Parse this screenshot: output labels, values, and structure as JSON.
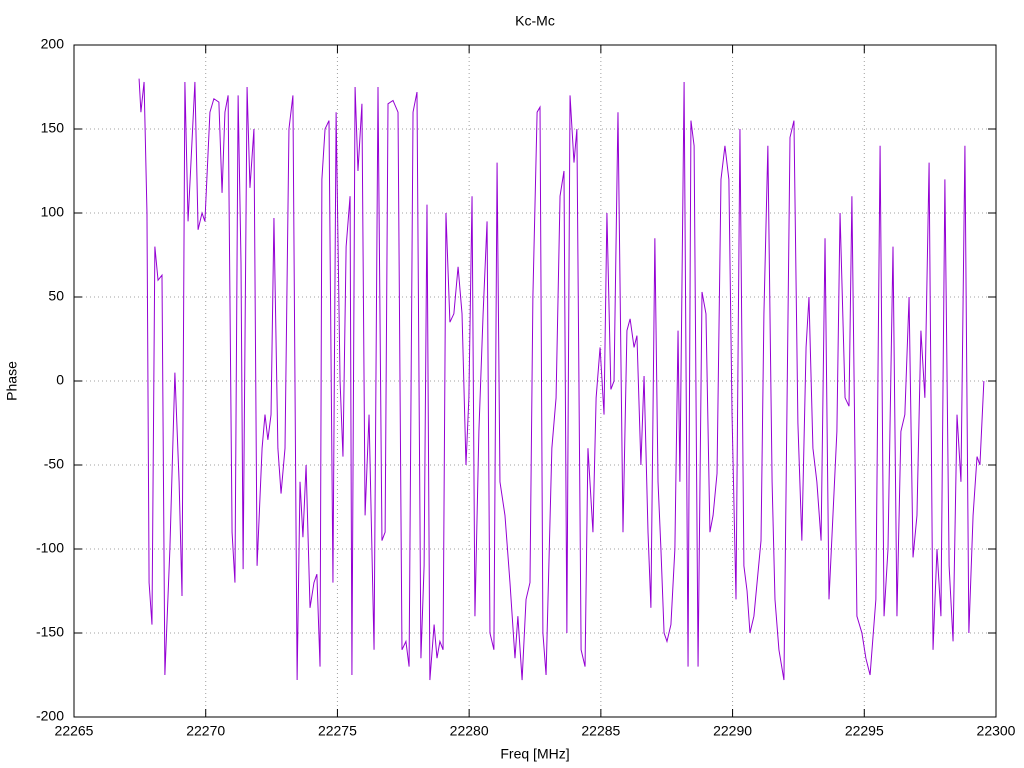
{
  "chart_data": {
    "type": "line",
    "title": "Kc-Mc",
    "x_label": "Freq [MHz]",
    "y_label": "Phase",
    "color": "#9400d3",
    "grid": true,
    "xlim": [
      22265,
      22300
    ],
    "xticks": [
      22265,
      22270,
      22275,
      22280,
      22285,
      22290,
      22295,
      22300
    ],
    "ylim": [
      -200,
      200
    ],
    "yticks": [
      -200,
      -150,
      -100,
      -50,
      0,
      50,
      100,
      150,
      200
    ],
    "x": [
      22267.47,
      22267.54,
      22267.66,
      22267.77,
      22267.85,
      22267.96,
      22268.07,
      22268.19,
      22268.34,
      22268.45,
      22268.64,
      22268.83,
      22268.99,
      22269.1,
      22269.21,
      22269.33,
      22269.44,
      22269.59,
      22269.71,
      22269.86,
      22269.97,
      22270.16,
      22270.31,
      22270.5,
      22270.62,
      22270.73,
      22270.85,
      22271.0,
      22271.11,
      22271.23,
      22271.34,
      22271.42,
      22271.57,
      22271.68,
      22271.83,
      22271.95,
      22272.14,
      22272.25,
      22272.36,
      22272.48,
      22272.59,
      22272.74,
      22272.86,
      22273.01,
      22273.16,
      22273.31,
      22273.47,
      22273.58,
      22273.69,
      22273.81,
      22273.96,
      22274.11,
      22274.22,
      22274.34,
      22274.41,
      22274.53,
      22274.68,
      22274.83,
      22274.95,
      22275.1,
      22275.21,
      22275.33,
      22275.48,
      22275.55,
      22275.67,
      22275.78,
      22275.93,
      22276.05,
      22276.2,
      22276.39,
      22276.54,
      22276.69,
      22276.81,
      22276.92,
      22277.11,
      22277.3,
      22277.45,
      22277.6,
      22277.72,
      22277.87,
      22278.02,
      22278.17,
      22278.29,
      22278.4,
      22278.51,
      22278.67,
      22278.78,
      22278.89,
      22279.01,
      22279.12,
      22279.27,
      22279.42,
      22279.58,
      22279.73,
      22279.88,
      22279.99,
      22280.11,
      22280.22,
      22280.37,
      22280.53,
      22280.68,
      22280.79,
      22280.94,
      22281.06,
      22281.17,
      22281.36,
      22281.55,
      22281.74,
      22281.85,
      22282.01,
      22282.16,
      22282.31,
      22282.42,
      22282.58,
      22282.69,
      22282.8,
      22282.92,
      22283.14,
      22283.3,
      22283.45,
      22283.6,
      22283.71,
      22283.83,
      22283.98,
      22284.09,
      22284.25,
      22284.4,
      22284.51,
      22284.7,
      22284.82,
      22284.97,
      22285.12,
      22285.23,
      22285.38,
      22285.5,
      22285.65,
      22285.84,
      22285.99,
      22286.11,
      22286.26,
      22286.37,
      22286.52,
      22286.64,
      22286.79,
      22286.9,
      22287.05,
      22287.17,
      22287.28,
      22287.4,
      22287.51,
      22287.66,
      22287.81,
      22287.93,
      22288.0,
      22288.16,
      22288.31,
      22288.42,
      22288.54,
      22288.69,
      22288.84,
      22288.99,
      22289.14,
      22289.26,
      22289.41,
      22289.56,
      22289.71,
      22289.86,
      22289.98,
      22290.13,
      22290.28,
      22290.43,
      22290.55,
      22290.66,
      22290.81,
      22290.93,
      22291.08,
      22291.19,
      22291.34,
      22291.5,
      22291.61,
      22291.76,
      22291.95,
      22292.18,
      22292.33,
      22292.48,
      22292.63,
      22292.79,
      22292.9,
      22293.05,
      22293.2,
      22293.36,
      22293.51,
      22293.66,
      22293.81,
      22293.96,
      22294.08,
      22294.27,
      22294.42,
      22294.53,
      22294.72,
      22294.91,
      22295.06,
      22295.22,
      22295.44,
      22295.6,
      22295.75,
      22295.9,
      22296.09,
      22296.24,
      22296.39,
      22296.54,
      22296.7,
      22296.85,
      22297.0,
      22297.15,
      22297.3,
      22297.46,
      22297.61,
      22297.76,
      22297.91,
      22298.06,
      22298.22,
      22298.37,
      22298.52,
      22298.67,
      22298.82,
      22298.97,
      22299.13,
      22299.28,
      22299.39,
      22299.54
    ],
    "values": [
      180,
      160,
      178,
      100,
      -120,
      -145,
      80,
      60,
      63,
      -175,
      -100,
      5,
      -60,
      -128,
      178,
      95,
      130,
      178,
      90,
      100,
      95,
      160,
      168,
      166,
      112,
      160,
      170,
      -90,
      -120,
      170,
      70,
      -112,
      175,
      115,
      150,
      -110,
      -40,
      -20,
      -35,
      -20,
      97,
      -40,
      -67,
      -40,
      150,
      170,
      -178,
      -60,
      -93,
      -50,
      -135,
      -120,
      -115,
      -170,
      120,
      150,
      155,
      -120,
      160,
      0,
      -45,
      80,
      110,
      -175,
      175,
      125,
      165,
      -80,
      -20,
      -160,
      175,
      -95,
      -90,
      165,
      167,
      160,
      -160,
      -155,
      -170,
      160,
      172,
      -165,
      -110,
      105,
      -178,
      -145,
      -165,
      -155,
      -160,
      100,
      35,
      40,
      68,
      40,
      -50,
      -10,
      110,
      -140,
      -30,
      40,
      95,
      -150,
      -160,
      130,
      -60,
      -80,
      -120,
      -165,
      -140,
      -178,
      -130,
      -120,
      50,
      160,
      163,
      -150,
      -175,
      -40,
      -10,
      110,
      125,
      -150,
      170,
      130,
      150,
      -160,
      -170,
      -40,
      -90,
      -10,
      20,
      -20,
      100,
      -5,
      0,
      160,
      -90,
      30,
      37,
      20,
      27,
      -50,
      3,
      -90,
      -135,
      85,
      -60,
      -100,
      -150,
      -155,
      -145,
      -100,
      30,
      -60,
      178,
      -170,
      155,
      140,
      -170,
      53,
      40,
      -90,
      -80,
      -55,
      120,
      140,
      120,
      -20,
      -130,
      150,
      -110,
      -125,
      -150,
      -140,
      -120,
      -95,
      40,
      140,
      -60,
      -130,
      -160,
      -178,
      145,
      155,
      -25,
      -95,
      20,
      50,
      -40,
      -60,
      -95,
      85,
      -130,
      -80,
      -30,
      100,
      -10,
      -15,
      110,
      -140,
      -150,
      -165,
      -175,
      -130,
      140,
      -140,
      -100,
      80,
      -140,
      -30,
      -20,
      50,
      -105,
      -80,
      30,
      -10,
      130,
      -160,
      -100,
      -140,
      120,
      -110,
      -155,
      -20,
      -60,
      140,
      -150,
      -80,
      -45,
      -50,
      0
    ]
  }
}
